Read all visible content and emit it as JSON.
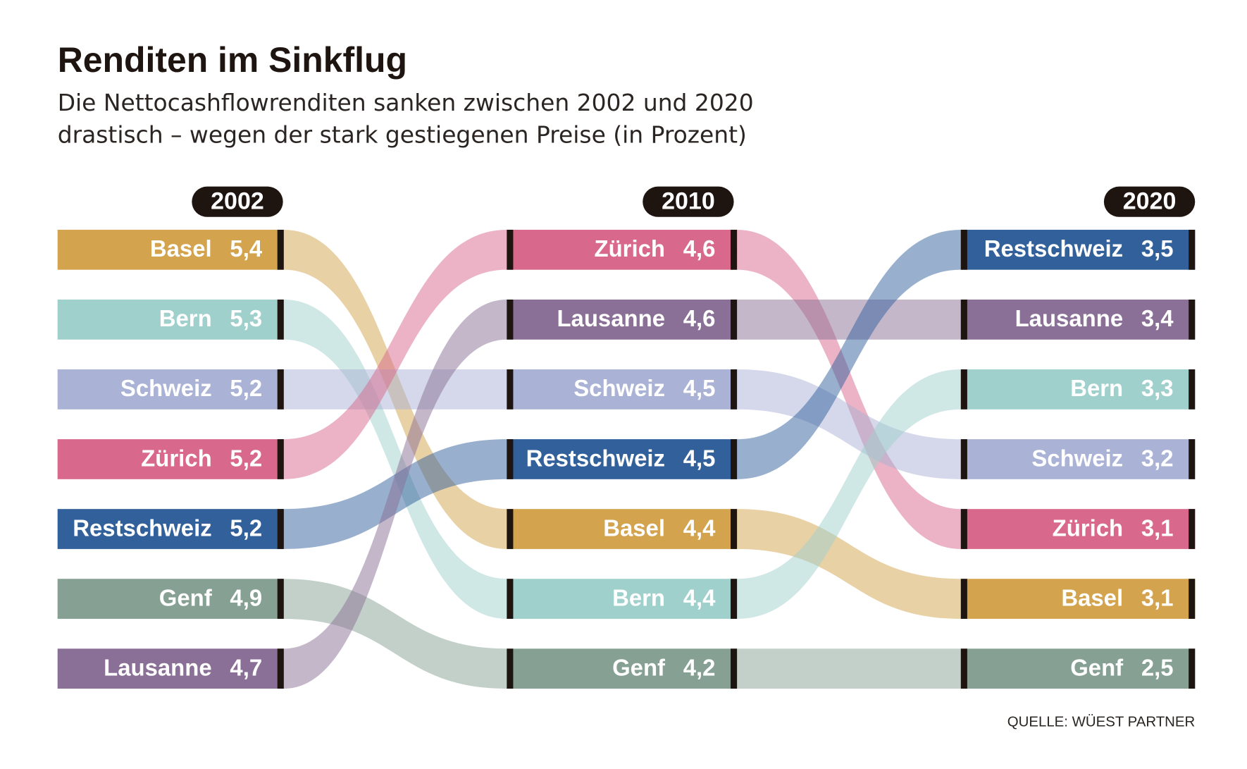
{
  "chart_data": {
    "type": "bump",
    "title": "Renditen im Sinkflug",
    "subtitle": "Die Nettocashflowrenditen sanken zwischen 2002 und 2020 drastisch – wegen der stark gestiegenen Preise (in Prozent)",
    "source": "QUELLE: WÜEST PARTNER",
    "colors": {
      "Basel": "#d3a34d",
      "Bern": "#9fd0cc",
      "Schweiz": "#aab2d6",
      "Zürich": "#d8688c",
      "Restschweiz": "#32609b",
      "Genf": "#86a193",
      "Lausanne": "#8a6f96"
    },
    "columns": [
      {
        "label": "2002",
        "entries": [
          {
            "name": "Basel",
            "value": 5.4,
            "value_label": "5,4"
          },
          {
            "name": "Bern",
            "value": 5.3,
            "value_label": "5,3"
          },
          {
            "name": "Schweiz",
            "value": 5.2,
            "value_label": "5,2"
          },
          {
            "name": "Zürich",
            "value": 5.2,
            "value_label": "5,2"
          },
          {
            "name": "Restschweiz",
            "value": 5.2,
            "value_label": "5,2"
          },
          {
            "name": "Genf",
            "value": 4.9,
            "value_label": "4,9"
          },
          {
            "name": "Lausanne",
            "value": 4.7,
            "value_label": "4,7"
          }
        ]
      },
      {
        "label": "2010",
        "entries": [
          {
            "name": "Zürich",
            "value": 4.6,
            "value_label": "4,6"
          },
          {
            "name": "Lausanne",
            "value": 4.6,
            "value_label": "4,6"
          },
          {
            "name": "Schweiz",
            "value": 4.5,
            "value_label": "4,5"
          },
          {
            "name": "Restschweiz",
            "value": 4.5,
            "value_label": "4,5"
          },
          {
            "name": "Basel",
            "value": 4.4,
            "value_label": "4,4"
          },
          {
            "name": "Bern",
            "value": 4.4,
            "value_label": "4,4"
          },
          {
            "name": "Genf",
            "value": 4.2,
            "value_label": "4,2"
          }
        ]
      },
      {
        "label": "2020",
        "entries": [
          {
            "name": "Restschweiz",
            "value": 3.5,
            "value_label": "3,5"
          },
          {
            "name": "Lausanne",
            "value": 3.4,
            "value_label": "3,4"
          },
          {
            "name": "Bern",
            "value": 3.3,
            "value_label": "3,3"
          },
          {
            "name": "Schweiz",
            "value": 3.2,
            "value_label": "3,2"
          },
          {
            "name": "Zürich",
            "value": 3.1,
            "value_label": "3,1"
          },
          {
            "name": "Basel",
            "value": 3.1,
            "value_label": "3,1"
          },
          {
            "name": "Genf",
            "value": 2.5,
            "value_label": "2,5"
          }
        ]
      }
    ]
  }
}
